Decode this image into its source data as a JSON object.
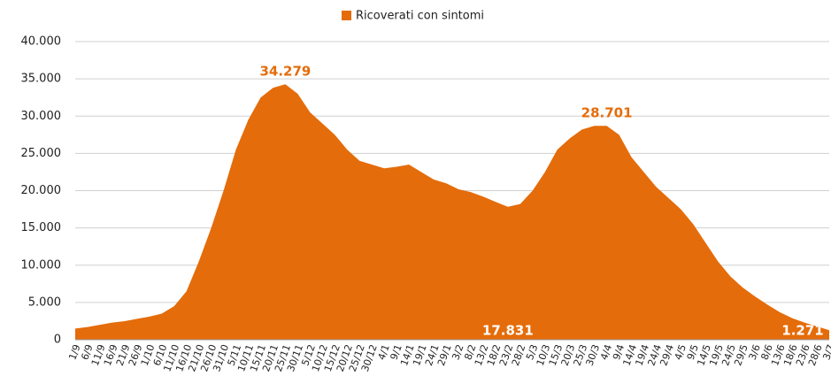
{
  "chart_data": {
    "type": "area",
    "series": [
      {
        "name": "Ricoverati con sintomi",
        "color": "#e46c0a",
        "values": [
          1500,
          1700,
          2000,
          2300,
          2500,
          2800,
          3100,
          3500,
          4500,
          6500,
          10500,
          15000,
          20000,
          25500,
          29500,
          32500,
          33800,
          34279,
          33000,
          30500,
          29000,
          27500,
          25500,
          24000,
          23500,
          23000,
          23200,
          23500,
          22500,
          21500,
          21000,
          20200,
          19800,
          19200,
          18500,
          17831,
          18200,
          20000,
          22500,
          25500,
          27000,
          28200,
          28700,
          28701,
          27500,
          24500,
          22500,
          20500,
          19000,
          17500,
          15500,
          13000,
          10500,
          8500,
          7000,
          5800,
          4700,
          3700,
          2900,
          2300,
          1800,
          1271
        ],
        "value_labels": [
          null,
          null,
          null,
          null,
          null,
          null,
          null,
          null,
          null,
          null,
          null,
          null,
          null,
          null,
          null,
          null,
          null,
          "34.279",
          null,
          null,
          null,
          null,
          null,
          null,
          null,
          null,
          null,
          null,
          null,
          null,
          null,
          null,
          null,
          null,
          null,
          "17.831",
          null,
          null,
          null,
          null,
          null,
          null,
          null,
          "28.701",
          null,
          null,
          null,
          null,
          null,
          null,
          null,
          null,
          null,
          null,
          null,
          null,
          null,
          null,
          null,
          null,
          null,
          "1.271"
        ]
      }
    ],
    "categories": [
      "1/9",
      "6/9",
      "11/9",
      "16/9",
      "21/9",
      "26/9",
      "1/10",
      "6/10",
      "11/10",
      "16/10",
      "21/10",
      "26/10",
      "31/10",
      "5/11",
      "10/11",
      "15/11",
      "20/11",
      "25/11",
      "30/11",
      "5/12",
      "10/12",
      "15/12",
      "20/12",
      "25/12",
      "30/12",
      "4/1",
      "9/1",
      "14/1",
      "19/1",
      "24/1",
      "29/1",
      "3/2",
      "8/2",
      "13/2",
      "18/2",
      "23/2",
      "28/2",
      "5/3",
      "10/3",
      "15/3",
      "20/3",
      "25/3",
      "30/3",
      "4/4",
      "9/4",
      "14/4",
      "19/4",
      "24/4",
      "29/4",
      "4/5",
      "9/5",
      "14/5",
      "19/5",
      "24/5",
      "29/5",
      "3/6",
      "8/6",
      "13/6",
      "18/6",
      "23/6",
      "28/6",
      "3/7"
    ],
    "ylim": [
      0,
      40000
    ],
    "yticks": [
      0,
      {
        "value": 5000,
        "label": "5.000"
      },
      {
        "value": 10000,
        "label": "10.000"
      },
      {
        "value": 15000,
        "label": "15.000"
      },
      {
        "value": 20000,
        "label": "20.000"
      },
      {
        "value": 25000,
        "label": "25.000"
      },
      {
        "value": 30000,
        "label": "30.000"
      },
      {
        "value": 35000,
        "label": "35.000"
      },
      {
        "value": 40000,
        "label": "40.000"
      }
    ],
    "grid": true,
    "legend": "top"
  }
}
